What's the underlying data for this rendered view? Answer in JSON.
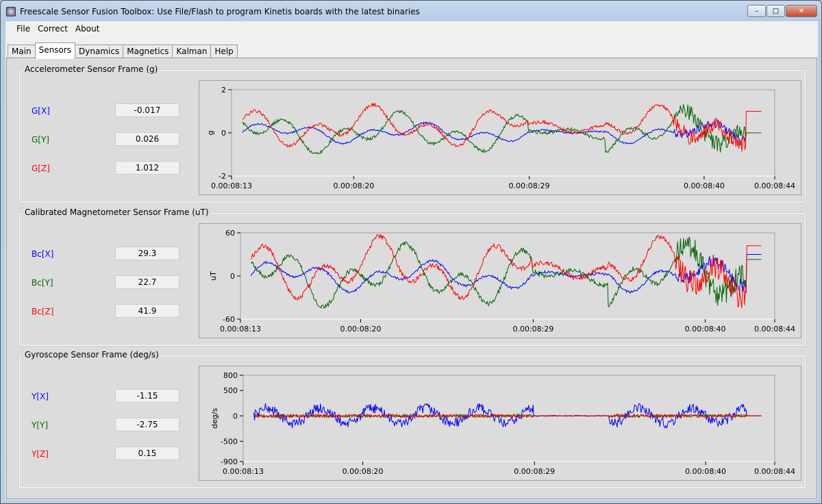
{
  "window": {
    "title": "Freescale Sensor Fusion Toolbox: Use File/Flash to program Kinetis boards with the latest binaries",
    "minimize": "–",
    "maximize": "□",
    "close": "✕"
  },
  "menu": [
    "File",
    "Correct",
    "About"
  ],
  "tabs": [
    {
      "label": "Main"
    },
    {
      "label": "Sensors",
      "active": true
    },
    {
      "label": "Dynamics"
    },
    {
      "label": "Magnetics"
    },
    {
      "label": "Kalman"
    },
    {
      "label": "Help"
    }
  ],
  "colors": {
    "x": "#0000ff",
    "y": "#006400",
    "z": "#ff0000"
  },
  "groups": [
    {
      "title": "Accelerometer Sensor Frame (g)",
      "readouts": [
        {
          "label": "G[X]",
          "value": "-0.017"
        },
        {
          "label": "G[Y]",
          "value": "0.026"
        },
        {
          "label": "G[Z]",
          "value": "1.012"
        }
      ],
      "chart": {
        "ylabel": "g",
        "yticks": [
          "2",
          "0",
          "-2"
        ],
        "ylim": [
          -2,
          2
        ],
        "xticks": [
          "0.00:08:13",
          "0.00:08:20",
          "0.00:08:29",
          "0.00:08:40",
          "0.00:08:44"
        ]
      }
    },
    {
      "title": "Calibrated Magnetometer Sensor Frame (uT)",
      "readouts": [
        {
          "label": "Bc[X]",
          "value": "29.3"
        },
        {
          "label": "Bc[Y]",
          "value": "22.7"
        },
        {
          "label": "Bc[Z]",
          "value": "41.9"
        }
      ],
      "chart": {
        "ylabel": "uT",
        "yticks": [
          "60",
          "0",
          "-60"
        ],
        "ylim": [
          -60,
          60
        ],
        "xticks": [
          "0.00:08:13",
          "0.00:08:20",
          "0.00:08:29",
          "0.00:08:40",
          "0.00:08:44"
        ]
      }
    },
    {
      "title": "Gyroscope Sensor Frame (deg/s)",
      "readouts": [
        {
          "label": "Y[X]",
          "value": "-1.15"
        },
        {
          "label": "Y[Y]",
          "value": "-2.75"
        },
        {
          "label": "Y[Z]",
          "value": "0.15"
        }
      ],
      "chart": {
        "ylabel": "deg/s",
        "yticks": [
          "800",
          "500",
          "0",
          "-500",
          "-900"
        ],
        "ytickvals": [
          800,
          500,
          0,
          -500,
          -900
        ],
        "ylim": [
          -900,
          800
        ],
        "xticks": [
          "0.00:08:13",
          "0.00:08:20",
          "0.00:08:29",
          "0.00:08:40",
          "0.00:08:44"
        ]
      }
    }
  ]
}
